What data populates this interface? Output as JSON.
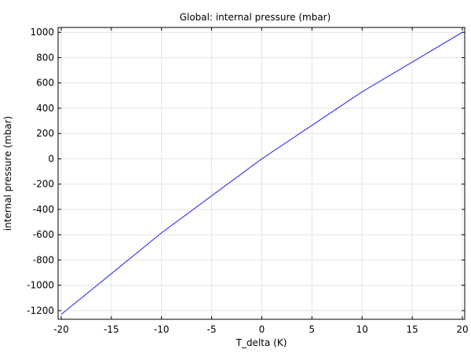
{
  "chart_data": {
    "type": "line",
    "title": "Global: internal pressure (mbar)",
    "xlabel": "T_delta (K)",
    "ylabel": "internal pressure (mbar)",
    "xlim": [
      -20,
      20
    ],
    "ylim": [
      -1250,
      1020
    ],
    "xticks": [
      -20,
      -15,
      -10,
      -5,
      0,
      5,
      10,
      15,
      20
    ],
    "yticks": [
      -1200,
      -1000,
      -800,
      -600,
      -400,
      -200,
      0,
      200,
      400,
      600,
      800,
      1000
    ],
    "grid": true,
    "series": [
      {
        "color": "#3f3ff5",
        "x": [
          -20,
          -10,
          0,
          10,
          20
        ],
        "y": [
          -1230,
          -585,
          0,
          530,
          1000
        ]
      }
    ]
  }
}
